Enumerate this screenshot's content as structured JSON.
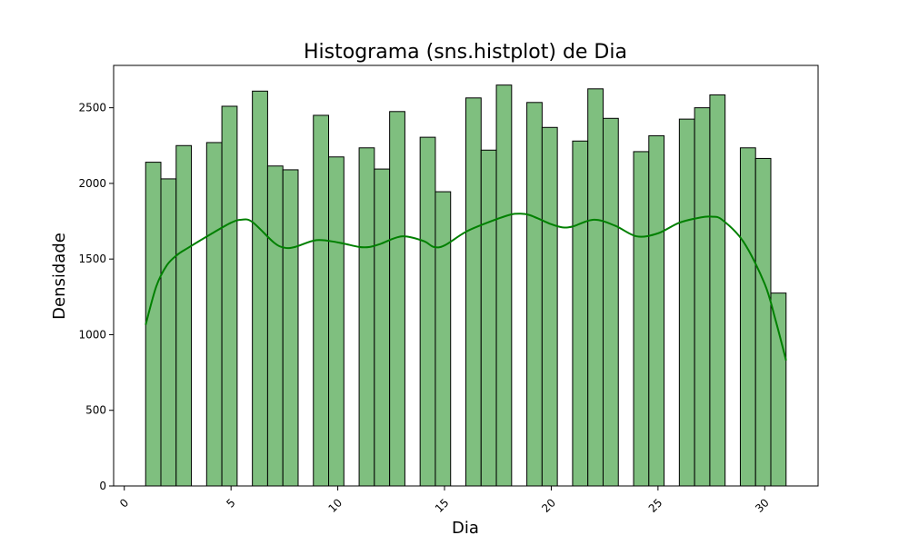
{
  "chart_data": {
    "type": "bar",
    "title": "Histograma (sns.histplot) de Dia",
    "xlabel": "Dia",
    "ylabel": "Densidade",
    "xlim": [
      -0.5,
      32.5
    ],
    "ylim": [
      0,
      2780
    ],
    "xticks": [
      0,
      5,
      10,
      15,
      20,
      25,
      30
    ],
    "yticks": [
      0,
      500,
      1000,
      1500,
      2000,
      2500
    ],
    "grid": false,
    "legend": "none",
    "bar_color": "#7fbf7f",
    "bar_edge_color": "#000000",
    "kde_color": "#008000",
    "bins": [
      {
        "start": 1.0,
        "end": 1.714,
        "value": 2140
      },
      {
        "start": 1.714,
        "end": 2.429,
        "value": 2030
      },
      {
        "start": 2.429,
        "end": 3.143,
        "value": 2250
      },
      {
        "start": 3.857,
        "end": 4.571,
        "value": 2270
      },
      {
        "start": 4.571,
        "end": 5.286,
        "value": 2510
      },
      {
        "start": 6.0,
        "end": 6.714,
        "value": 2610
      },
      {
        "start": 6.714,
        "end": 7.429,
        "value": 2115
      },
      {
        "start": 7.429,
        "end": 8.143,
        "value": 2090
      },
      {
        "start": 8.857,
        "end": 9.571,
        "value": 2450
      },
      {
        "start": 9.571,
        "end": 10.286,
        "value": 2175
      },
      {
        "start": 11.0,
        "end": 11.714,
        "value": 2235
      },
      {
        "start": 11.714,
        "end": 12.429,
        "value": 2095
      },
      {
        "start": 12.429,
        "end": 13.143,
        "value": 2475
      },
      {
        "start": 13.857,
        "end": 14.571,
        "value": 2305
      },
      {
        "start": 14.571,
        "end": 15.286,
        "value": 1945
      },
      {
        "start": 16.0,
        "end": 16.714,
        "value": 2565
      },
      {
        "start": 16.714,
        "end": 17.429,
        "value": 2220
      },
      {
        "start": 17.429,
        "end": 18.143,
        "value": 2650
      },
      {
        "start": 18.857,
        "end": 19.571,
        "value": 2535
      },
      {
        "start": 19.571,
        "end": 20.286,
        "value": 2370
      },
      {
        "start": 21.0,
        "end": 21.714,
        "value": 2280
      },
      {
        "start": 21.714,
        "end": 22.429,
        "value": 2625
      },
      {
        "start": 22.429,
        "end": 23.143,
        "value": 2430
      },
      {
        "start": 23.857,
        "end": 24.571,
        "value": 2210
      },
      {
        "start": 24.571,
        "end": 25.286,
        "value": 2315
      },
      {
        "start": 26.0,
        "end": 26.714,
        "value": 2425
      },
      {
        "start": 26.714,
        "end": 27.429,
        "value": 2500
      },
      {
        "start": 27.429,
        "end": 28.143,
        "value": 2585
      },
      {
        "start": 28.857,
        "end": 29.571,
        "value": 2235
      },
      {
        "start": 29.571,
        "end": 30.286,
        "value": 2165
      },
      {
        "start": 30.286,
        "end": 31.0,
        "value": 1275
      }
    ],
    "kde": {
      "x": [
        1.0,
        1.5,
        2.0,
        2.5,
        3.0,
        4.0,
        5.0,
        5.5,
        6.0,
        7.0,
        7.5,
        8.0,
        9.0,
        10.0,
        11.0,
        11.5,
        12.0,
        13.0,
        14.0,
        14.5,
        15.0,
        16.0,
        17.0,
        18.0,
        18.5,
        19.0,
        20.0,
        20.5,
        21.0,
        22.0,
        23.0,
        24.0,
        25.0,
        26.0,
        27.0,
        27.5,
        28.0,
        29.0,
        30.0,
        30.5,
        31.0
      ],
      "y": [
        1065,
        1320,
        1460,
        1530,
        1575,
        1660,
        1740,
        1760,
        1745,
        1610,
        1575,
        1580,
        1625,
        1610,
        1580,
        1580,
        1600,
        1650,
        1620,
        1580,
        1590,
        1680,
        1740,
        1790,
        1800,
        1790,
        1730,
        1710,
        1715,
        1760,
        1720,
        1650,
        1670,
        1740,
        1775,
        1780,
        1760,
        1615,
        1335,
        1100,
        830
      ]
    }
  }
}
